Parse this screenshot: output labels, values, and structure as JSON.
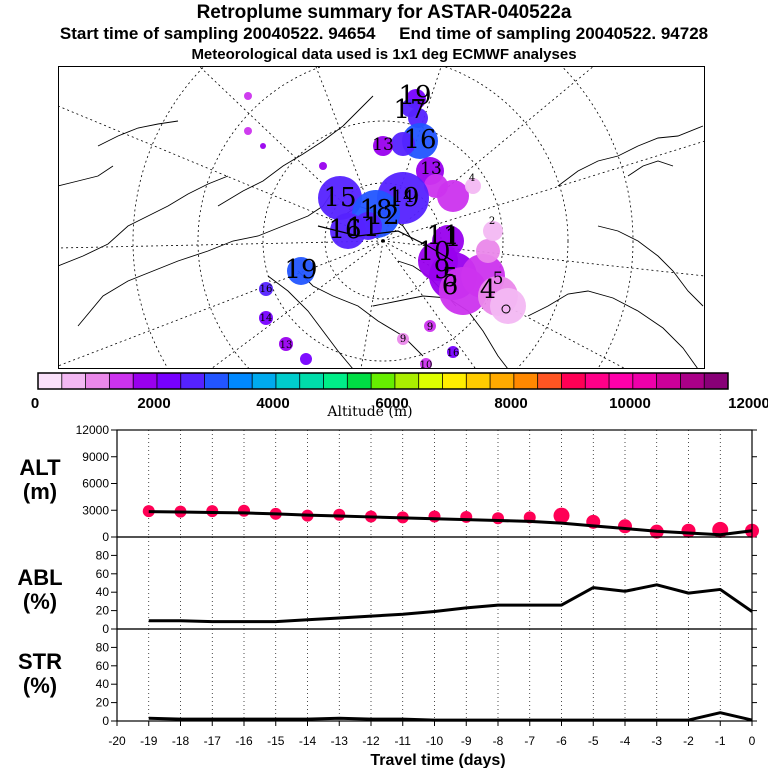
{
  "header": {
    "title": "Retroplume summary for ASTAR-040522a",
    "start_label": "Start time of sampling 20040522. 94654",
    "end_label": "End time of sampling 20040522. 94728",
    "met_label": "Meteorological data used is 1x1 deg ECMWF analyses"
  },
  "colorbar": {
    "label": "Altitude (m)",
    "ticks": [
      "0",
      "2000",
      "4000",
      "6000",
      "8000",
      "10000",
      "12000"
    ],
    "colors": [
      "#f9e0f9",
      "#f3b8f3",
      "#ea88ea",
      "#cc33ee",
      "#9900ee",
      "#7700ff",
      "#5522ff",
      "#2255ff",
      "#0088ff",
      "#00aaee",
      "#00cccc",
      "#00ddaa",
      "#00ee88",
      "#00dd44",
      "#66ee00",
      "#aaee00",
      "#ddff00",
      "#ffee00",
      "#ffcc00",
      "#ffaa00",
      "#ff8800",
      "#ff5522",
      "#ff0055",
      "#ff0088",
      "#ff00aa",
      "#ee00aa",
      "#cc0099",
      "#aa0088",
      "#880077"
    ]
  },
  "map": {
    "labels": [
      {
        "text": "19",
        "size": "l"
      },
      {
        "text": "17",
        "size": "l"
      },
      {
        "text": "16",
        "size": "l"
      },
      {
        "text": "13",
        "size": "m"
      },
      {
        "text": "15",
        "size": "l"
      },
      {
        "text": "14",
        "size": "m"
      },
      {
        "text": "19",
        "size": "l"
      },
      {
        "text": "18",
        "size": "l"
      },
      {
        "text": "16",
        "size": "l"
      },
      {
        "text": "11",
        "size": "l"
      },
      {
        "text": "12",
        "size": "l"
      },
      {
        "text": "1",
        "size": "l"
      },
      {
        "text": "11",
        "size": "l"
      },
      {
        "text": "10",
        "size": "l"
      },
      {
        "text": "9",
        "size": "l"
      },
      {
        "text": "5",
        "size": "l"
      },
      {
        "text": "6",
        "size": "l"
      },
      {
        "text": "4",
        "size": "l"
      },
      {
        "text": "5",
        "size": "m"
      },
      {
        "text": "2",
        "size": "s"
      },
      {
        "text": "4",
        "size": "s"
      },
      {
        "text": "19",
        "size": "l"
      },
      {
        "text": "16",
        "size": "s"
      },
      {
        "text": "14",
        "size": "s"
      },
      {
        "text": "13",
        "size": "s"
      },
      {
        "text": "9",
        "size": "s"
      },
      {
        "text": "9",
        "size": "s"
      },
      {
        "text": "10",
        "size": "s"
      },
      {
        "text": "16",
        "size": "s"
      },
      {
        "text": "13",
        "size": "m"
      }
    ]
  },
  "chart_data": [
    {
      "type": "line",
      "name": "ALT",
      "ylabel": "ALT\n(m)",
      "ylabel_lines": [
        "ALT",
        "(m)"
      ],
      "x": [
        -19,
        -18,
        -17,
        -16,
        -15,
        -14,
        -13,
        -12,
        -11,
        -10,
        -9,
        -8,
        -7,
        -6,
        -5,
        -4,
        -3,
        -2,
        -1,
        0
      ],
      "series": [
        {
          "name": "mean altitude",
          "values": [
            2850,
            2800,
            2750,
            2700,
            2600,
            2450,
            2350,
            2250,
            2150,
            2050,
            1950,
            1850,
            1750,
            1550,
            1250,
            950,
            650,
            450,
            250,
            700
          ]
        }
      ],
      "scatter": {
        "name": "altitude spread",
        "x": [
          -19,
          -18,
          -17,
          -16,
          -15,
          -14,
          -13,
          -12,
          -11,
          -10,
          -9,
          -8,
          -7,
          -6,
          -5,
          -4,
          -3,
          -2,
          -1,
          0
        ],
        "values": [
          2900,
          2850,
          2900,
          2950,
          2600,
          2400,
          2500,
          2300,
          2200,
          2300,
          2250,
          2100,
          2200,
          2400,
          1700,
          1200,
          600,
          700,
          800,
          700
        ]
      },
      "xlim": [
        -20,
        0
      ],
      "ylim": [
        0,
        12000
      ],
      "yticks": [
        "0",
        "3000",
        "6000",
        "9000",
        "12000"
      ]
    },
    {
      "type": "line",
      "name": "ABL",
      "ylabel_lines": [
        "ABL",
        "(%)"
      ],
      "x": [
        -19,
        -18,
        -17,
        -16,
        -15,
        -14,
        -13,
        -12,
        -11,
        -10,
        -9,
        -8,
        -7,
        -6,
        -5,
        -4,
        -3,
        -2,
        -1,
        0
      ],
      "series": [
        {
          "name": "ABL fraction",
          "values": [
            9,
            9,
            8,
            8,
            8,
            10,
            12,
            14,
            16,
            19,
            23,
            26,
            26,
            26,
            45,
            41,
            48,
            39,
            43,
            19
          ]
        }
      ],
      "xlim": [
        -20,
        0
      ],
      "ylim": [
        0,
        100
      ],
      "yticks": [
        "0",
        "20",
        "40",
        "60",
        "80"
      ]
    },
    {
      "type": "line",
      "name": "STR",
      "ylabel_lines": [
        "STR",
        "(%)"
      ],
      "x": [
        -19,
        -18,
        -17,
        -16,
        -15,
        -14,
        -13,
        -12,
        -11,
        -10,
        -9,
        -8,
        -7,
        -6,
        -5,
        -4,
        -3,
        -2,
        -1,
        0
      ],
      "series": [
        {
          "name": "stratosphere fraction",
          "values": [
            3,
            2,
            2,
            2,
            2,
            2,
            3,
            2,
            2,
            1,
            1,
            1,
            1,
            1,
            1,
            1,
            1,
            1,
            9,
            1
          ]
        }
      ],
      "xlim": [
        -20,
        0
      ],
      "ylim": [
        0,
        100
      ],
      "yticks": [
        "0",
        "20",
        "40",
        "60",
        "80"
      ],
      "xlabel": "Travel time (days)",
      "xticks": [
        "-20",
        "-19",
        "-18",
        "-17",
        "-16",
        "-15",
        "-14",
        "-13",
        "-12",
        "-11",
        "-10",
        "-9",
        "-8",
        "-7",
        "-6",
        "-5",
        "-4",
        "-3",
        "-2",
        "-1",
        "0"
      ]
    }
  ]
}
